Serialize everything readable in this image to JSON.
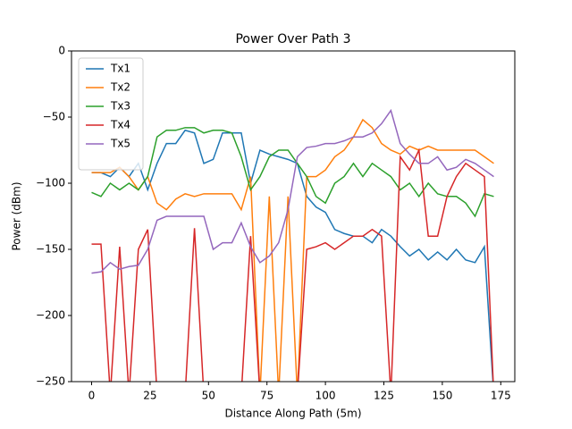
{
  "chart_data": {
    "type": "line",
    "title": "Power Over Path 3",
    "x_label": "Distance Along Path (5m)",
    "y_label": "Power (dBm)",
    "x": [
      0,
      4,
      8,
      12,
      16,
      20,
      24,
      28,
      32,
      36,
      40,
      44,
      48,
      52,
      56,
      60,
      64,
      68,
      72,
      76,
      80,
      84,
      88,
      92,
      96,
      100,
      104,
      108,
      112,
      116,
      120,
      124,
      128,
      132,
      136,
      140,
      144,
      148,
      152,
      156,
      160,
      164,
      168,
      172
    ],
    "series": [
      {
        "name": "Tx1",
        "color": "#1f77b4",
        "values": [
          -92,
          -92,
          -95,
          -88,
          -95,
          -85,
          -105,
          -85,
          -70,
          -70,
          -60,
          -62,
          -85,
          -82,
          -62,
          -62,
          -62,
          -100,
          -75,
          -78,
          -80,
          -82,
          -85,
          -110,
          -118,
          -122,
          -135,
          -138,
          -140,
          -140,
          -145,
          -135,
          -140,
          -148,
          -155,
          -150,
          -158,
          -152,
          -158,
          -150,
          -158,
          -160,
          -148,
          -260
        ]
      },
      {
        "name": "Tx2",
        "color": "#ff7f0e",
        "values": [
          -92,
          -92,
          -92,
          -88,
          -95,
          -105,
          -95,
          -115,
          -120,
          -112,
          -108,
          -110,
          -108,
          -108,
          -108,
          -108,
          -120,
          -95,
          -260,
          -110,
          -260,
          -110,
          -260,
          -95,
          -95,
          -90,
          -80,
          -75,
          -65,
          -52,
          -58,
          -70,
          -75,
          -78,
          -72,
          -75,
          -72,
          -75,
          -75,
          -75,
          -75,
          -75,
          -80,
          -85
        ]
      },
      {
        "name": "Tx3",
        "color": "#2ca02c",
        "values": [
          -107,
          -110,
          -100,
          -105,
          -100,
          -105,
          -95,
          -65,
          -60,
          -60,
          -58,
          -58,
          -62,
          -60,
          -60,
          -62,
          -80,
          -105,
          -95,
          -80,
          -75,
          -75,
          -85,
          -95,
          -110,
          -115,
          -100,
          -95,
          -85,
          -95,
          -85,
          -90,
          -95,
          -105,
          -100,
          -110,
          -100,
          -108,
          -110,
          -110,
          -115,
          -125,
          -108,
          -110
        ]
      },
      {
        "name": "Tx4",
        "color": "#d62728",
        "values": [
          -146,
          -146,
          -260,
          -148,
          -260,
          -150,
          -135,
          -260,
          -260,
          -260,
          -260,
          -134,
          -260,
          -260,
          -260,
          -260,
          -260,
          -140,
          -260,
          -260,
          -260,
          -260,
          -260,
          -150,
          -148,
          -145,
          -150,
          -145,
          -140,
          -140,
          -135,
          -140,
          -260,
          -80,
          -90,
          -75,
          -140,
          -140,
          -110,
          -95,
          -85,
          -90,
          -95,
          -260
        ]
      },
      {
        "name": "Tx5",
        "color": "#9467bd",
        "values": [
          -168,
          -167,
          -160,
          -165,
          -163,
          -162,
          -150,
          -128,
          -125,
          -125,
          -125,
          -125,
          -125,
          -150,
          -145,
          -145,
          -130,
          -148,
          -160,
          -155,
          -145,
          -120,
          -80,
          -73,
          -72,
          -70,
          -70,
          -68,
          -65,
          -65,
          -62,
          -55,
          -45,
          -70,
          -78,
          -85,
          -85,
          -80,
          -90,
          -88,
          -82,
          -85,
          -90,
          -95
        ]
      }
    ],
    "xlim": [
      -8.6,
      181
    ],
    "ylim": [
      -250,
      0
    ],
    "xticks": [
      0,
      25,
      50,
      75,
      100,
      125,
      150,
      175
    ],
    "yticks": [
      {
        "value": 0,
        "label": "0"
      },
      {
        "value": -50,
        "label": "−50"
      },
      {
        "value": -100,
        "label": "−100"
      },
      {
        "value": -150,
        "label": "−150"
      },
      {
        "value": -200,
        "label": "−200"
      },
      {
        "value": -250,
        "label": "−250"
      }
    ],
    "legend": "upper-left"
  }
}
